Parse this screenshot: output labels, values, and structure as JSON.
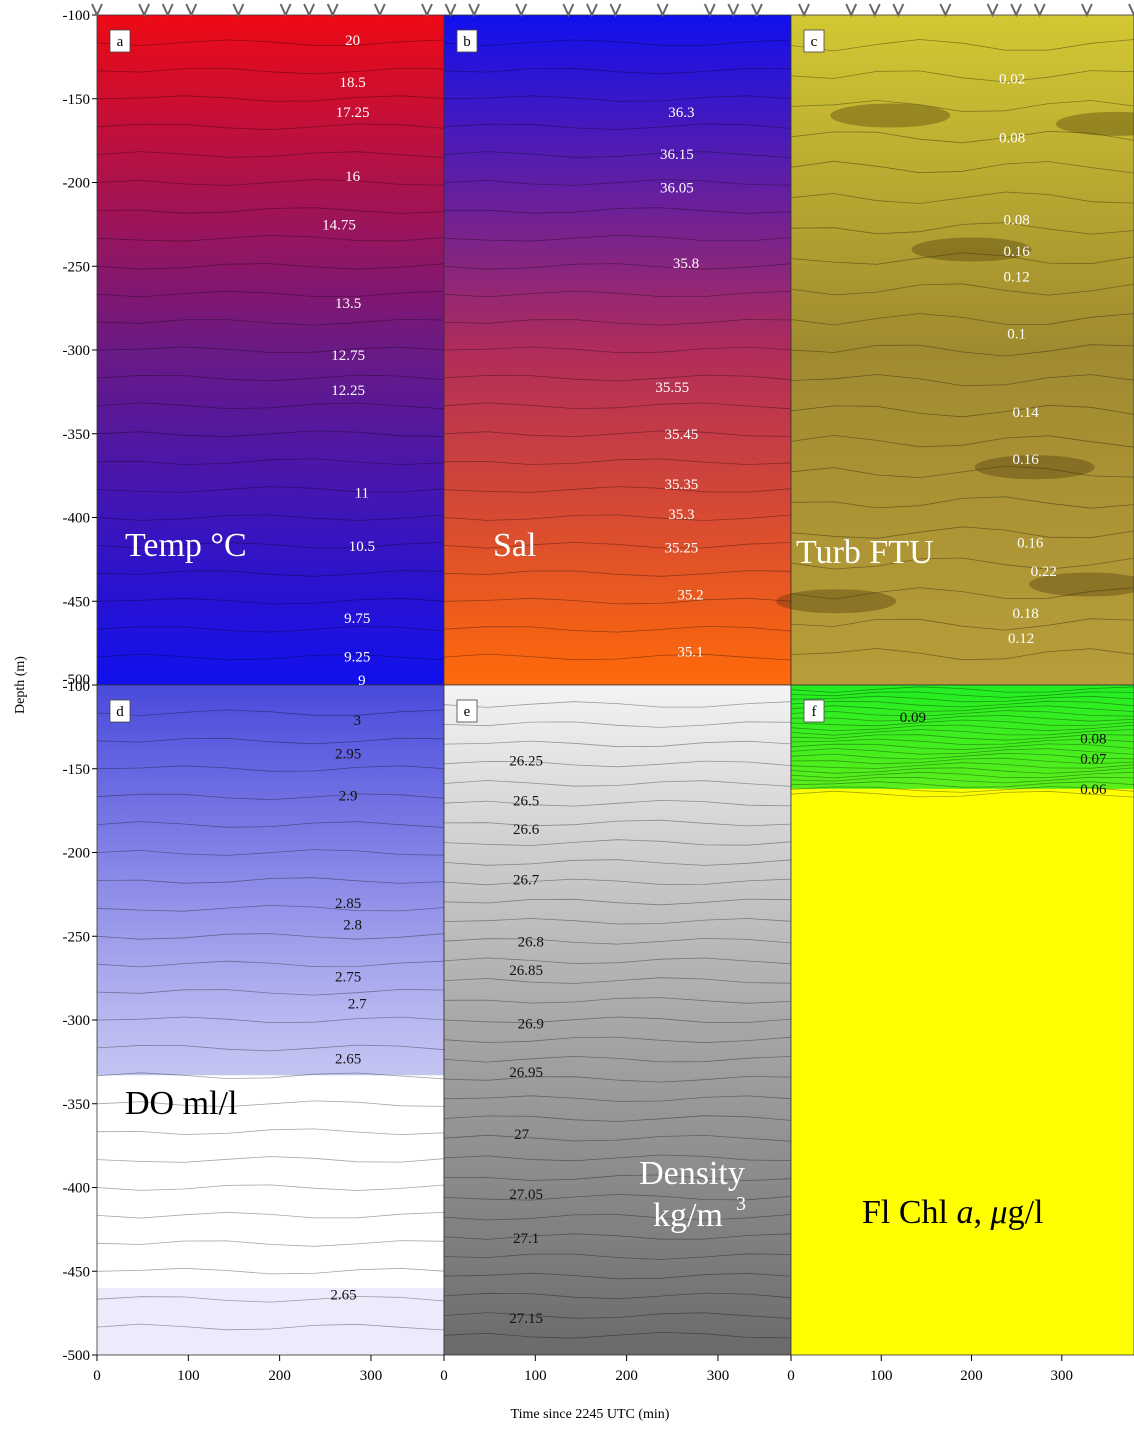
{
  "chart_data": {
    "type": "heatmap",
    "xlabel": "Time since 2245 UTC (min)",
    "ylabel": "Depth (m)",
    "xlim": [
      0,
      380
    ],
    "ylim": [
      -500,
      -100
    ],
    "x_ticks": [
      "0",
      "100",
      "200",
      "300"
    ],
    "y_ticks_top": [
      "-100",
      "-150",
      "-200",
      "-250",
      "-300",
      "-350",
      "-400",
      "-450",
      "-500"
    ],
    "y_ticks_bottom": [
      "-100",
      "-150",
      "-200",
      "-250",
      "-300",
      "-350",
      "-400",
      "-450",
      "-500"
    ],
    "cast_markers": [
      0,
      25,
      50,
      75,
      100,
      125,
      150,
      175,
      200,
      225,
      250,
      275,
      300,
      325,
      350,
      375,
      400,
      425,
      450,
      475,
      500,
      525,
      550,
      575,
      600,
      625,
      650,
      675,
      700,
      725,
      750,
      775,
      800,
      825,
      850,
      875,
      900,
      925,
      950,
      975,
      1000,
      1025,
      1050,
      1075,
      1100
    ],
    "panels": [
      {
        "letter": "a",
        "title": "Temp °C",
        "color_top": "#ee0a14",
        "color_mid": "#6a1a84",
        "color_bottom": "#1010ee",
        "labels": [
          {
            "text": "20",
            "x": 280,
            "depth": -115
          },
          {
            "text": "18.5",
            "x": 280,
            "depth": -140
          },
          {
            "text": "17.25",
            "x": 280,
            "depth": -158
          },
          {
            "text": "16",
            "x": 280,
            "depth": -196
          },
          {
            "text": "14.75",
            "x": 265,
            "depth": -225
          },
          {
            "text": "13.5",
            "x": 275,
            "depth": -272
          },
          {
            "text": "12.75",
            "x": 275,
            "depth": -303
          },
          {
            "text": "12.25",
            "x": 275,
            "depth": -324
          },
          {
            "text": "11",
            "x": 290,
            "depth": -385
          },
          {
            "text": "10.5",
            "x": 290,
            "depth": -417
          },
          {
            "text": "9.75",
            "x": 285,
            "depth": -460
          },
          {
            "text": "9.25",
            "x": 285,
            "depth": -483
          },
          {
            "text": "9",
            "x": 290,
            "depth": -497
          }
        ]
      },
      {
        "letter": "b",
        "title": "Sal",
        "color_top": "#1010ee",
        "color_mid": "#b02c5a",
        "color_bottom": "#ff6a0a",
        "labels": [
          {
            "text": "36.3",
            "x": 260,
            "depth": -158
          },
          {
            "text": "36.15",
            "x": 255,
            "depth": -183
          },
          {
            "text": "36.05",
            "x": 255,
            "depth": -203
          },
          {
            "text": "35.8",
            "x": 265,
            "depth": -248
          },
          {
            "text": "35.55",
            "x": 250,
            "depth": -322
          },
          {
            "text": "35.45",
            "x": 260,
            "depth": -350
          },
          {
            "text": "35.35",
            "x": 260,
            "depth": -380
          },
          {
            "text": "35.3",
            "x": 260,
            "depth": -398
          },
          {
            "text": "35.25",
            "x": 260,
            "depth": -418
          },
          {
            "text": "35.2",
            "x": 270,
            "depth": -446
          },
          {
            "text": "35.1",
            "x": 270,
            "depth": -480
          }
        ]
      },
      {
        "letter": "c",
        "title": "Turb FTU",
        "color_top": "#d2c832",
        "color_mid": "#a08a30",
        "color_bottom": "#b89e3a",
        "labels": [
          {
            "text": "0.02",
            "x": 245,
            "depth": -138
          },
          {
            "text": "0.08",
            "x": 245,
            "depth": -173
          },
          {
            "text": "0.08",
            "x": 250,
            "depth": -222
          },
          {
            "text": "0.16",
            "x": 250,
            "depth": -241
          },
          {
            "text": "0.12",
            "x": 250,
            "depth": -256
          },
          {
            "text": "0.1",
            "x": 250,
            "depth": -290
          },
          {
            "text": "0.14",
            "x": 260,
            "depth": -337
          },
          {
            "text": "0.16",
            "x": 260,
            "depth": -365
          },
          {
            "text": "0.16",
            "x": 265,
            "depth": -415
          },
          {
            "text": "0.22",
            "x": 280,
            "depth": -432
          },
          {
            "text": "0.18",
            "x": 260,
            "depth": -457
          },
          {
            "text": "0.12",
            "x": 255,
            "depth": -472
          }
        ]
      },
      {
        "letter": "d",
        "title": "DO ml/l",
        "color_top": "#4a4adc",
        "color_mid": "#b8b8f0",
        "color_bottom": "#ffffff",
        "labels": [
          {
            "text": "3",
            "x": 285,
            "depth": -121
          },
          {
            "text": "2.95",
            "x": 275,
            "depth": -141
          },
          {
            "text": "2.9",
            "x": 275,
            "depth": -166
          },
          {
            "text": "2.85",
            "x": 275,
            "depth": -230
          },
          {
            "text": "2.8",
            "x": 280,
            "depth": -243
          },
          {
            "text": "2.75",
            "x": 275,
            "depth": -274
          },
          {
            "text": "2.7",
            "x": 285,
            "depth": -290
          },
          {
            "text": "2.65",
            "x": 275,
            "depth": -323
          },
          {
            "text": "2.65",
            "x": 270,
            "depth": -464
          }
        ]
      },
      {
        "letter": "e",
        "title": "Density",
        "title_line2": "kg/m",
        "title_superscript": "3",
        "color_top": "#f4f4f4",
        "color_mid": "#a8a8a8",
        "color_bottom": "#6a6a6a",
        "labels": [
          {
            "text": "26.25",
            "x": 90,
            "depth": -145
          },
          {
            "text": "26.5",
            "x": 90,
            "depth": -169
          },
          {
            "text": "26.6",
            "x": 90,
            "depth": -186
          },
          {
            "text": "26.7",
            "x": 90,
            "depth": -216
          },
          {
            "text": "26.8",
            "x": 95,
            "depth": -253
          },
          {
            "text": "26.85",
            "x": 90,
            "depth": -270
          },
          {
            "text": "26.9",
            "x": 95,
            "depth": -302
          },
          {
            "text": "26.95",
            "x": 90,
            "depth": -331
          },
          {
            "text": "27",
            "x": 85,
            "depth": -368
          },
          {
            "text": "27.05",
            "x": 90,
            "depth": -404
          },
          {
            "text": "27.1",
            "x": 90,
            "depth": -430
          },
          {
            "text": "27.15",
            "x": 90,
            "depth": -478
          }
        ]
      },
      {
        "letter": "f",
        "title_prefix": "Fl Chl ",
        "title_italic1": "a",
        "title_mid": ", ",
        "title_italic2": "μ",
        "title_suffix": "g/l",
        "color_top": "#22ee22",
        "color_mid": "#d8f00c",
        "color_bottom": "#ffff00",
        "labels": [
          {
            "text": "0.09",
            "x": 135,
            "depth": -119
          },
          {
            "text": "0.08",
            "x": 335,
            "depth": -132
          },
          {
            "text": "0.07",
            "x": 335,
            "depth": -144
          },
          {
            "text": "0.06",
            "x": 335,
            "depth": -162
          }
        ]
      }
    ]
  }
}
